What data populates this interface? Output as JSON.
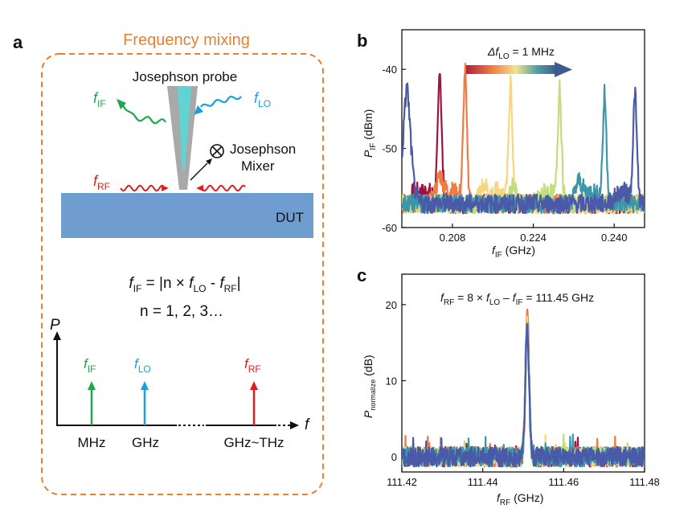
{
  "panel_a": {
    "label": "a",
    "title": "Frequency mixing",
    "probe_label": "Josephson probe",
    "mixer_label_1": "Josephson",
    "mixer_label_2": "Mixer",
    "dut_label": "DUT",
    "f_if": {
      "main": "f",
      "sub": "IF"
    },
    "f_lo": {
      "main": "f",
      "sub": "LO"
    },
    "f_rf": {
      "main": "f",
      "sub": "RF"
    },
    "eq1": {
      "lhs": "f",
      "lhs_sub": "IF",
      "mid": " = |n × ",
      "lo": "f",
      "lo_sub": "LO",
      "minus": " - ",
      "rf": "f",
      "rf_sub": "RF",
      "end": "|"
    },
    "eq2": "n = 1, 2, 3…",
    "spectrum": {
      "p_axis": "P",
      "f_axis": "f",
      "tick_mhz": "MHz",
      "tick_ghz": "GHz",
      "tick_thz": "GHz~THz"
    },
    "colors": {
      "orange": "#E8802E",
      "green": "#1BA84A",
      "blue": "#1A9FDF",
      "red": "#E01E1E",
      "dut": "#6F9DCF",
      "probe": "#A9A9A9",
      "probe_core": "#62D3D3"
    }
  },
  "chart_data": [
    {
      "panel": "b",
      "type": "line",
      "delta_label": {
        "pre": "Δf",
        "sub": "LO",
        "post": " = 1 MHz"
      },
      "xlabel": {
        "main": "f",
        "sub": "IF",
        "unit": " (GHz)"
      },
      "ylabel": {
        "main": "P",
        "sub": "IF",
        "unit": " (dBm)"
      },
      "xlim": [
        0.198,
        0.246
      ],
      "ylim": [
        -60,
        -35
      ],
      "xticks": [
        0.208,
        0.224,
        0.24
      ],
      "yticks": [
        -40,
        -50,
        -60
      ],
      "baseline": -57,
      "series": [
        {
          "color": "#9E1340",
          "peak_x": 0.2055,
          "peak_y": -39.4,
          "side_x": 0.2005,
          "side_y": -55.5
        },
        {
          "color": "#EE7A44",
          "peak_x": 0.2105,
          "peak_y": -39.8,
          "side_x": 0.2055,
          "side_y": -53.5
        },
        {
          "color": "#F7D680",
          "peak_x": 0.2195,
          "peak_y": -41.0,
          "side_x": 0.2142,
          "side_y": -54.5
        },
        {
          "color": "#C2DD7E",
          "peak_x": 0.2292,
          "peak_y": -41.7,
          "side_x": 0.22,
          "side_y": -54.8
        },
        {
          "color": "#3D96A8",
          "peak_x": 0.2381,
          "peak_y": -42.9,
          "side_x": 0.233,
          "side_y": -54.2
        },
        {
          "color": "#4A5AA8",
          "peak_x": 0.2441,
          "peak_y": -42.6,
          "side_x": 0.199,
          "side_y": -42.0
        }
      ]
    },
    {
      "panel": "c",
      "type": "line",
      "annotation": {
        "f1": "f",
        "f1_sub": "RF",
        "mid": " = 8 × ",
        "f2": "f",
        "f2_sub": "LO",
        "minus": " – ",
        "f3": "f",
        "f3_sub": "IF",
        "end": " = 111.45 GHz"
      },
      "xlabel": {
        "main": "f",
        "sub": "RF",
        "unit": " (GHz)"
      },
      "ylabel": {
        "main": "P",
        "sub": "normalize",
        "unit": " (dB)"
      },
      "xlim": [
        111.42,
        111.48
      ],
      "ylim": [
        -2,
        24
      ],
      "xticks": [
        111.42,
        111.44,
        111.46,
        111.48
      ],
      "yticks": [
        0,
        10,
        20
      ],
      "peak_x": 111.451,
      "peak_y": 18.7,
      "series_colors": [
        "#9E1340",
        "#EE7A44",
        "#F7D680",
        "#C2DD7E",
        "#3D96A8",
        "#4A5AA8"
      ]
    }
  ]
}
